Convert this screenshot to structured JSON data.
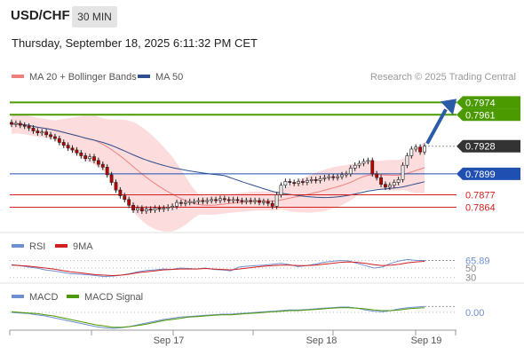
{
  "header": {
    "symbol": "USD/CHF",
    "timeframe": "30 MIN",
    "datetime": "Thursday, September 18, 2025 6:11:32 PM CET"
  },
  "legend": {
    "ma20": "MA 20 + Bollinger Bands",
    "ma50": "MA 50",
    "copyright": "Research © 2025 Trading Central",
    "rsi": "RSI",
    "rsi_ma": "9MA",
    "macd": "MACD",
    "macd_signal": "MACD Signal"
  },
  "colors": {
    "up_candle": "#f3f3f3",
    "down_candle": "#c00000",
    "ma20": "#f08080",
    "bollinger_fill": "#fbd6d6",
    "ma50": "#2f4f8f",
    "resistance": "#4a9a00",
    "pivot": "#1f4fb0",
    "support": "#d22020",
    "arrow": "#2a5aa8",
    "current": "#333333"
  },
  "chart_data": [
    {
      "type": "candlestick",
      "x_tick_labels": [
        "Sep 17",
        "Sep 18",
        "Sep 19"
      ],
      "ylim": [
        0.7843,
        0.7992
      ],
      "levels": [
        {
          "value": 0.7974,
          "label": "0.7974",
          "kind": "resistance"
        },
        {
          "value": 0.7961,
          "label": "0.7961",
          "kind": "resistance"
        },
        {
          "value": 0.7928,
          "label": "0.7928",
          "kind": "current"
        },
        {
          "value": 0.7899,
          "label": "0.7899",
          "kind": "pivot"
        },
        {
          "value": 0.7877,
          "label": "0.7877",
          "kind": "support"
        },
        {
          "value": 0.7864,
          "label": "0.7864",
          "kind": "support"
        }
      ],
      "close": [
        0.7951,
        0.7952,
        0.795,
        0.7949,
        0.7947,
        0.7944,
        0.7942,
        0.7943,
        0.794,
        0.7938,
        0.7936,
        0.7932,
        0.7929,
        0.7926,
        0.7924,
        0.7921,
        0.7918,
        0.7915,
        0.7917,
        0.7913,
        0.7909,
        0.7906,
        0.7898,
        0.789,
        0.7882,
        0.7876,
        0.7872,
        0.7866,
        0.7861,
        0.7863,
        0.786,
        0.7862,
        0.7861,
        0.7863,
        0.7862,
        0.7863,
        0.7864,
        0.7865,
        0.7869,
        0.7868,
        0.7869,
        0.787,
        0.787,
        0.7871,
        0.787,
        0.7871,
        0.7872,
        0.7871,
        0.7873,
        0.7872,
        0.7871,
        0.7872,
        0.7871,
        0.787,
        0.7871,
        0.787,
        0.7871,
        0.7869,
        0.787,
        0.7868,
        0.7865,
        0.7877,
        0.7887,
        0.7891,
        0.789,
        0.7889,
        0.7891,
        0.789,
        0.7892,
        0.7893,
        0.7892,
        0.7894,
        0.7895,
        0.7896,
        0.7895,
        0.7896,
        0.7898,
        0.7899,
        0.7905,
        0.7908,
        0.791,
        0.7912,
        0.7913,
        0.7899,
        0.7895,
        0.7888,
        0.7885,
        0.7887,
        0.789,
        0.7893,
        0.7908,
        0.7918,
        0.7925,
        0.7927,
        0.7922,
        0.7928
      ],
      "series": [
        {
          "name": "MA 20 + Bollinger Bands"
        },
        {
          "name": "MA 50"
        }
      ]
    },
    {
      "type": "line",
      "title": "RSI",
      "tick_labels": [
        "65.89",
        "50",
        "30"
      ],
      "ylim": [
        20,
        80
      ],
      "series": [
        {
          "name": "RSI",
          "values": [
            57,
            55,
            52,
            50,
            46,
            44,
            41,
            38,
            37,
            36,
            34,
            32,
            33,
            35,
            38,
            42,
            45,
            46,
            48,
            47,
            50,
            49,
            48,
            50,
            47,
            46,
            44,
            52,
            54,
            55,
            56,
            58,
            60,
            57,
            53,
            55,
            58,
            62,
            64,
            66,
            65,
            60,
            55,
            50,
            52,
            60,
            65,
            68,
            66,
            65.89
          ]
        },
        {
          "name": "9MA",
          "values": [
            56,
            55,
            54,
            52,
            50,
            48,
            45,
            42,
            40,
            38,
            36,
            35,
            34,
            35,
            37,
            40,
            42,
            44,
            46,
            47,
            48,
            48,
            48,
            49,
            48,
            47,
            46,
            48,
            50,
            52,
            54,
            55,
            56,
            56,
            55,
            55,
            56,
            58,
            60,
            62,
            63,
            62,
            60,
            57,
            55,
            56,
            58,
            61,
            63,
            64
          ]
        }
      ]
    },
    {
      "type": "line",
      "title": "MACD",
      "tick_labels": [
        "0.00"
      ],
      "ylim": [
        -0.003,
        0.0015
      ],
      "series": [
        {
          "name": "MACD",
          "values": [
            0.0,
            -0.0001,
            -0.0002,
            -0.0004,
            -0.0006,
            -0.0009,
            -0.0012,
            -0.0015,
            -0.0018,
            -0.0021,
            -0.0024,
            -0.0026,
            -0.0027,
            -0.0026,
            -0.0024,
            -0.0021,
            -0.0018,
            -0.0015,
            -0.0012,
            -0.001,
            -0.0008,
            -0.0007,
            -0.0006,
            -0.0005,
            -0.0004,
            -0.0003,
            -0.0003,
            -0.0002,
            -0.0001,
            0.0,
            0.0001,
            0.0002,
            0.0003,
            0.0004,
            0.0004,
            0.0005,
            0.0006,
            0.0007,
            0.0008,
            0.0009,
            0.0009,
            0.0007,
            0.0004,
            0.0002,
            0.0001,
            0.0003,
            0.0006,
            0.0008,
            0.0009,
            0.001
          ]
        },
        {
          "name": "MACD Signal",
          "values": [
            0.0001,
            0.0,
            -0.0001,
            -0.0002,
            -0.0004,
            -0.0006,
            -0.0009,
            -0.0012,
            -0.0015,
            -0.0018,
            -0.0021,
            -0.0023,
            -0.0025,
            -0.0025,
            -0.0024,
            -0.0022,
            -0.002,
            -0.0017,
            -0.0014,
            -0.0012,
            -0.001,
            -0.0008,
            -0.0007,
            -0.0006,
            -0.0005,
            -0.0004,
            -0.0004,
            -0.0003,
            -0.0002,
            -0.0001,
            0.0,
            0.0001,
            0.0002,
            0.0003,
            0.0003,
            0.0004,
            0.0005,
            0.0006,
            0.0007,
            0.0008,
            0.0008,
            0.0007,
            0.0006,
            0.0004,
            0.0003,
            0.0003,
            0.0004,
            0.0006,
            0.0007,
            0.0008
          ]
        }
      ]
    }
  ]
}
